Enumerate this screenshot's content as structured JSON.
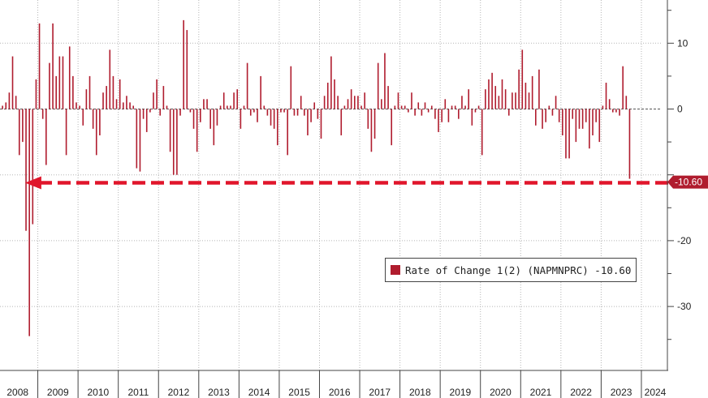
{
  "chart_data": {
    "type": "bar",
    "series": [
      {
        "name": "Rate of Change 1(2) (NAPMNPRC)",
        "color": "#b01c2e",
        "last_value_label": "-10.60",
        "x_start": "2008-01",
        "frequency": "monthly",
        "values": [
          -3.5,
          0.5,
          1.0,
          2.5,
          8.0,
          2.0,
          -7.0,
          -5.0,
          -18.5,
          -34.5,
          -17.5,
          4.5,
          13.0,
          -1.5,
          -8.5,
          7.0,
          13.0,
          5.0,
          8.0,
          8.0,
          -7.0,
          9.5,
          5.0,
          1.0,
          0.5,
          -2.5,
          3.0,
          5.0,
          -3.0,
          -7.0,
          -4.0,
          2.5,
          3.5,
          9.0,
          5.0,
          1.5,
          4.5,
          1.0,
          2.0,
          1.0,
          0.5,
          -9.0,
          -9.5,
          -1.5,
          -3.5,
          -0.5,
          2.5,
          4.5,
          -1.0,
          3.5,
          0.5,
          -6.5,
          -10.0,
          -10.0,
          -1.0,
          13.5,
          12.0,
          -0.5,
          -3.0,
          -6.5,
          -2.0,
          1.5,
          1.5,
          -3.0,
          -5.5,
          -2.5,
          0.5,
          2.5,
          0.5,
          0.5,
          2.5,
          3.0,
          -3.0,
          0.5,
          7.0,
          -1.0,
          -0.5,
          -2.0,
          5.0,
          0.5,
          -1.0,
          -2.5,
          -3.0,
          -5.5,
          -0.5,
          -0.5,
          -7.0,
          6.5,
          -1.0,
          -1.0,
          2.0,
          -1.0,
          -4.0,
          -2.0,
          1.0,
          -1.5,
          -4.5,
          2.0,
          4.0,
          8.0,
          4.5,
          2.0,
          -4.0,
          0.5,
          1.5,
          3.0,
          2.0,
          2.0,
          0.5,
          2.5,
          -3.0,
          -6.5,
          -4.5,
          7.0,
          1.5,
          8.5,
          3.5,
          -5.5,
          0.5,
          2.5,
          0.5,
          0.5,
          -0.5,
          2.5,
          -1.0,
          1.0,
          -1.0,
          1.0,
          -0.5,
          0.5,
          -1.5,
          -3.5,
          -2.0,
          1.5,
          -2.0,
          0.5,
          0.5,
          -1.5,
          2.0,
          0.5,
          3.0,
          -2.5,
          -0.5,
          0.5,
          -7.0,
          3.0,
          4.5,
          5.5,
          3.5,
          2.0,
          4.5,
          3.0,
          -1.0,
          2.5,
          2.5,
          6.0,
          9.0,
          4.0,
          2.5,
          5.0,
          -2.5,
          6.0,
          -3.0,
          -2.0,
          0.5,
          -1.0,
          2.0,
          -2.0,
          -4.0,
          -7.5,
          -7.5,
          -1.5,
          -5.0,
          -3.0,
          -3.0,
          -2.0,
          -6.0,
          -4.0,
          -2.0,
          -5.0,
          0.5,
          4.0,
          1.5,
          -0.5,
          -0.5,
          -1.0,
          6.5,
          2.0,
          -10.6
        ]
      }
    ],
    "xticks": [
      "2008",
      "2009",
      "2010",
      "2011",
      "2012",
      "2013",
      "2014",
      "2015",
      "2016",
      "2017",
      "2018",
      "2019",
      "2020",
      "2021",
      "2022",
      "2023",
      "2024"
    ],
    "yticks": [
      10,
      0,
      -10,
      -20,
      -30
    ],
    "ytick_labels": [
      "10",
      "0",
      "",
      "-20",
      "-30"
    ],
    "ylim": [
      -38.5,
      17.5
    ],
    "title": "",
    "xlabel": "",
    "ylabel": "",
    "grid": "dotted",
    "legend_position": "lower-right",
    "annotation": {
      "type": "dashed-arrow",
      "color": "#e0162b",
      "from_index": 200,
      "to_index": 7,
      "y": -11.2
    },
    "last_value_color": "#b01c2e"
  },
  "legend": {
    "label": "Rate of Change 1(2) (NAPMNPRC)  -10.60"
  }
}
